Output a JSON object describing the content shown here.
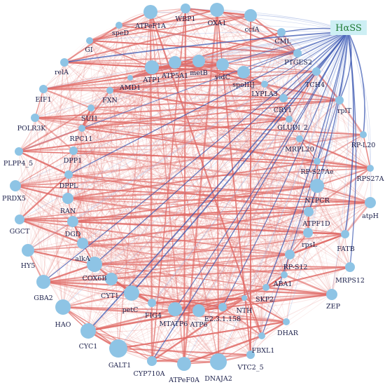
{
  "diagram": {
    "hub": {
      "label": "HαSS"
    },
    "colors": {
      "node": "#8ec4e5",
      "hub_edge": "#3a55b0",
      "hub_edge_light": "#9aaee0",
      "network_edge": "#e06a66"
    },
    "nodes": [
      "ATPeF1A",
      "WBP1",
      "OXA1",
      "ccfA",
      "speD",
      "GI",
      "CML",
      "PTGES2",
      "relA",
      "AMD1",
      "ATP1",
      "ATP5A1",
      "metB",
      "yidC",
      "spoIIIJ",
      "LYPLA3",
      "TCH4",
      "EIF1",
      "FXN",
      "CRY1",
      "rplT",
      "SUI1",
      "GLUDI_2",
      "POLR3K",
      "RPC11",
      "MRPL20",
      "RP-L20",
      "PLPP4_5",
      "DPP1",
      "RP-S27Ae",
      "RPS27A",
      "PRDX5",
      "DPPL",
      "NTPCR",
      "atpH",
      "RAN",
      "ATPF1D",
      "GGCT",
      "DGD",
      "rpsL",
      "FATB",
      "alkA",
      "HY5",
      "RP-S12",
      "MRPS12",
      "COX6B",
      "ABA1",
      "GBA2",
      "CYT1",
      "SKP2",
      "ZEP",
      "petC",
      "FIG4",
      "MTATP6",
      "ATP6",
      "E2.3.1.158",
      "NTH",
      "HAO",
      "DHAR",
      "CYC1",
      "FBXL1",
      "GALT1",
      "CYP710A",
      "ATPeF0A",
      "DNAJA2",
      "VTC2_5"
    ]
  }
}
